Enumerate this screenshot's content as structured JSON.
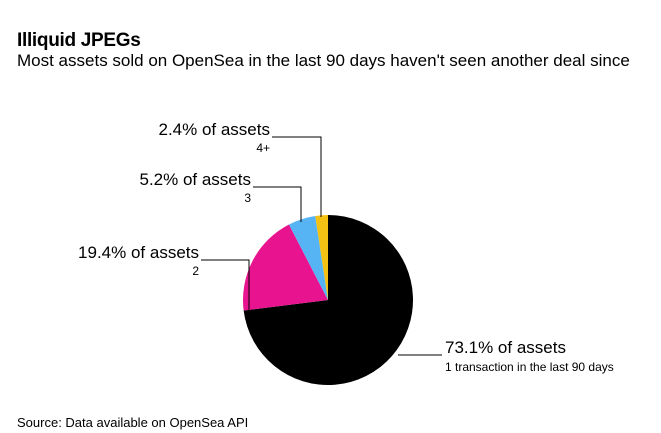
{
  "title": "Illiquid JPEGs",
  "subtitle": "Most assets sold on OpenSea in the last 90 days haven't seen another deal since",
  "source": "Source: Data available on OpenSea API",
  "chart_data": {
    "type": "pie",
    "title": "Illiquid JPEGs",
    "subtitle": "Most assets sold on OpenSea in the last 90 days haven't seen another deal since",
    "unit": "% of assets",
    "slices": [
      {
        "category": "1 transaction in the last 90 days",
        "value": 73.1,
        "label": "73.1% of assets",
        "color": "#000000"
      },
      {
        "category": "2",
        "value": 19.4,
        "label": "19.4% of assets",
        "color": "#e8138e"
      },
      {
        "category": "3",
        "value": 5.2,
        "label": "5.2% of assets",
        "color": "#56b4f5"
      },
      {
        "category": "4+",
        "value": 2.4,
        "label": "2.4% of assets",
        "color": "#f3c113"
      }
    ],
    "start_angle": "12 o'clock",
    "direction": "clockwise",
    "legend": "none (direct labels)"
  }
}
